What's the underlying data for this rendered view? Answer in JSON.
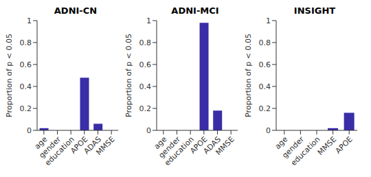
{
  "chart_data": [
    {
      "type": "bar",
      "title": "ADNI-CN",
      "y_label": "Proportion of p < 0.05",
      "categories": [
        "age",
        "gender",
        "education",
        "APOE",
        "ADAS",
        "MMSE"
      ],
      "values": [
        0.02,
        0,
        0,
        0.48,
        0.06,
        0
      ],
      "color": "#3a2da8",
      "ylim": [
        0,
        1
      ],
      "yticks": [
        0,
        0.2,
        0.4,
        0.6,
        0.8,
        1
      ],
      "grid": false
    },
    {
      "type": "bar",
      "title": "ADNI-MCI",
      "y_label": "Proportion of p < 0.05",
      "categories": [
        "age",
        "gender",
        "education",
        "APOE",
        "ADAS",
        "MMSE"
      ],
      "values": [
        0,
        0,
        0,
        0.98,
        0.18,
        0
      ],
      "color": "#3a2da8",
      "ylim": [
        0,
        1
      ],
      "yticks": [
        0,
        0.2,
        0.4,
        0.6,
        0.8,
        1
      ],
      "grid": false
    },
    {
      "type": "bar",
      "title": "INSIGHT",
      "y_label": "Proportion of p < 0.05",
      "categories": [
        "age",
        "gender",
        "education",
        "MMSE",
        "APOE"
      ],
      "values": [
        0,
        0,
        0,
        0.02,
        0.16
      ],
      "color": "#3a2da8",
      "ylim": [
        0,
        1
      ],
      "yticks": [
        0,
        0.2,
        0.4,
        0.6,
        0.8,
        1
      ],
      "grid": false
    }
  ]
}
